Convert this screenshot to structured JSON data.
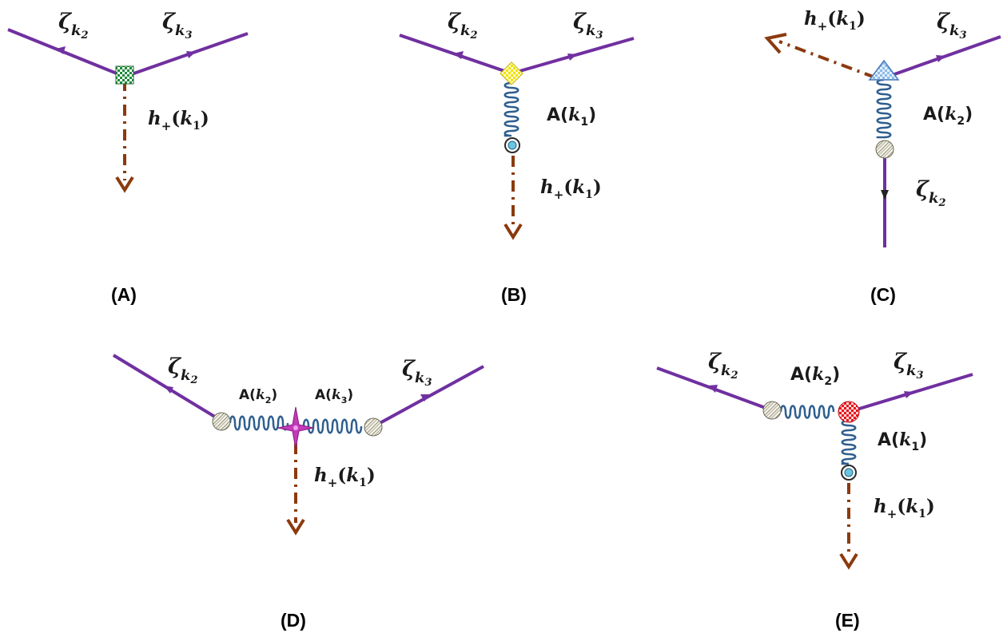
{
  "colors": {
    "scalar_line": "#7030a0",
    "tensor_line": "#8b3a0e",
    "gauge_spring": "#2f5f8f",
    "black_arrow": "#222222"
  },
  "fields": {
    "zeta": "ζ",
    "k_symbol": "k",
    "idx_1": "1",
    "idx_2": "2",
    "idx_3": "3",
    "h": "h",
    "plus": "+",
    "gauge": "A",
    "lparen": "(",
    "rparen": ")"
  },
  "panels": {
    "A": {
      "caption": "(A)",
      "vertex_icon": "green-checkered-square-icon"
    },
    "B": {
      "caption": "(B)",
      "vertex_icon": "yellow-diamond-icon",
      "end_icon": "blue-dot-icon"
    },
    "C": {
      "caption": "(C)",
      "vertex_icon": "blue-triangle-icon",
      "end_icon": "hatched-circle-icon"
    },
    "D": {
      "caption": "(D)",
      "vertex_icon": "magenta-star-icon",
      "end_icon": "hatched-circle-icon"
    },
    "E": {
      "caption": "(E)",
      "vertex_icon": "red-checkered-circle-icon",
      "end_icons": [
        "hatched-circle-icon",
        "blue-dot-icon"
      ]
    }
  }
}
